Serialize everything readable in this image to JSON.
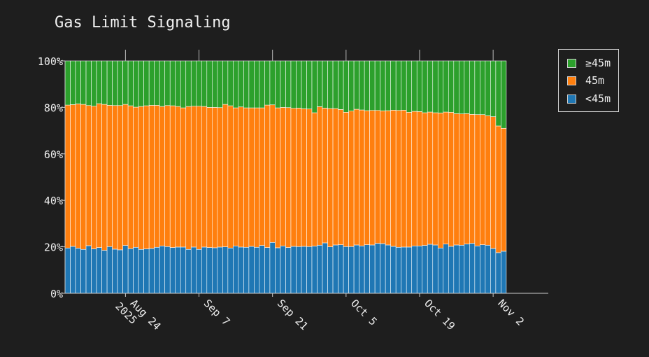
{
  "chart_data": {
    "type": "bar",
    "stacked": true,
    "title": "Gas Limit Signaling",
    "x_axis": {
      "type": "date",
      "start": "2025-08-13",
      "end": "2025-11-12",
      "ticks": [
        {
          "date": "2025-08-24",
          "label": "Aug 24",
          "sublabel": "2025"
        },
        {
          "date": "2025-09-07",
          "label": "Sep 7"
        },
        {
          "date": "2025-09-21",
          "label": "Sep 21"
        },
        {
          "date": "2025-10-05",
          "label": "Oct 5"
        },
        {
          "date": "2025-10-19",
          "label": "Oct 19"
        },
        {
          "date": "2025-11-02",
          "label": "Nov 2"
        }
      ]
    },
    "y_axis": {
      "ylim": [
        0,
        100
      ],
      "ticks": [
        0,
        20,
        40,
        60,
        80,
        100
      ],
      "tick_labels": [
        "0%",
        "20%",
        "40%",
        "60%",
        "80%",
        "100%"
      ]
    },
    "legend": {
      "position": "top-right outside",
      "entries": [
        "≥45m",
        "45m",
        "<45m"
      ]
    },
    "series": [
      {
        "name": "<45m",
        "color": "#1f77b4",
        "values": [
          19.5,
          20.2,
          19.4,
          18.9,
          20.5,
          19.1,
          19.7,
          18.5,
          20.1,
          19.0,
          18.7,
          20.6,
          19.2,
          19.8,
          18.9,
          19.1,
          19.3,
          19.8,
          20.4,
          20.1,
          19.7,
          19.9,
          19.9,
          18.9,
          19.9,
          18.9,
          19.9,
          19.7,
          19.6,
          19.9,
          20.0,
          19.5,
          20.4,
          19.9,
          19.8,
          20.2,
          19.8,
          20.6,
          19.7,
          21.9,
          19.6,
          20.4,
          19.7,
          20.2,
          20.1,
          20.2,
          20.1,
          20.3,
          20.7,
          21.7,
          20.0,
          20.8,
          20.9,
          20.1,
          20.1,
          20.8,
          20.4,
          20.9,
          20.8,
          21.5,
          21.4,
          20.8,
          20.2,
          19.8,
          19.9,
          19.9,
          20.4,
          20.4,
          20.6,
          21.1,
          20.8,
          19.5,
          21.2,
          20.2,
          20.8,
          20.7,
          21.2,
          21.5,
          20.4,
          20.9,
          20.7,
          19.3,
          17.5,
          18.1
        ]
      },
      {
        "name": "45m",
        "color": "#ff7f0e",
        "values": [
          61.5,
          61.0,
          62.1,
          62.4,
          60.3,
          61.4,
          61.9,
          62.8,
          60.8,
          61.8,
          62.1,
          60.7,
          61.5,
          60.3,
          61.5,
          61.6,
          61.6,
          61.1,
          60.0,
          60.7,
          61.0,
          60.5,
          59.9,
          61.5,
          60.6,
          61.6,
          60.5,
          60.3,
          60.4,
          60.0,
          61.3,
          61.2,
          59.4,
          60.3,
          60.0,
          59.6,
          60.0,
          59.2,
          61.3,
          59.2,
          60.2,
          59.6,
          60.2,
          59.4,
          59.6,
          59.2,
          59.2,
          57.4,
          59.6,
          58.0,
          59.5,
          58.7,
          58.2,
          57.8,
          58.3,
          58.4,
          58.5,
          57.7,
          57.9,
          57.2,
          57.1,
          57.8,
          58.6,
          58.9,
          58.9,
          58.0,
          57.9,
          57.8,
          57.1,
          56.9,
          56.9,
          58.1,
          56.8,
          57.7,
          56.5,
          56.5,
          56.1,
          55.5,
          56.5,
          56.0,
          55.7,
          56.7,
          54.5,
          52.9
        ]
      },
      {
        "name": "≥45m",
        "color": "#2ca02c",
        "values": [
          19.0,
          18.8,
          18.5,
          18.7,
          19.2,
          19.5,
          18.4,
          18.7,
          19.1,
          19.2,
          19.2,
          18.7,
          19.3,
          19.9,
          19.6,
          19.3,
          19.1,
          19.1,
          19.6,
          19.2,
          19.3,
          19.6,
          20.2,
          19.6,
          19.5,
          19.5,
          19.6,
          20.0,
          20.0,
          20.1,
          18.7,
          19.3,
          20.2,
          19.8,
          20.2,
          20.2,
          20.2,
          20.2,
          19.0,
          18.9,
          20.2,
          20.0,
          20.1,
          20.4,
          20.3,
          20.6,
          20.7,
          22.3,
          19.7,
          20.3,
          20.5,
          20.5,
          20.9,
          22.1,
          21.6,
          20.8,
          21.1,
          21.4,
          21.3,
          21.3,
          21.5,
          21.4,
          21.2,
          21.3,
          21.2,
          22.1,
          21.7,
          21.8,
          22.3,
          22.0,
          22.3,
          22.4,
          22.0,
          22.1,
          22.7,
          22.8,
          22.7,
          23.0,
          23.1,
          23.1,
          23.6,
          24.0,
          28.0,
          29.0
        ]
      }
    ]
  }
}
